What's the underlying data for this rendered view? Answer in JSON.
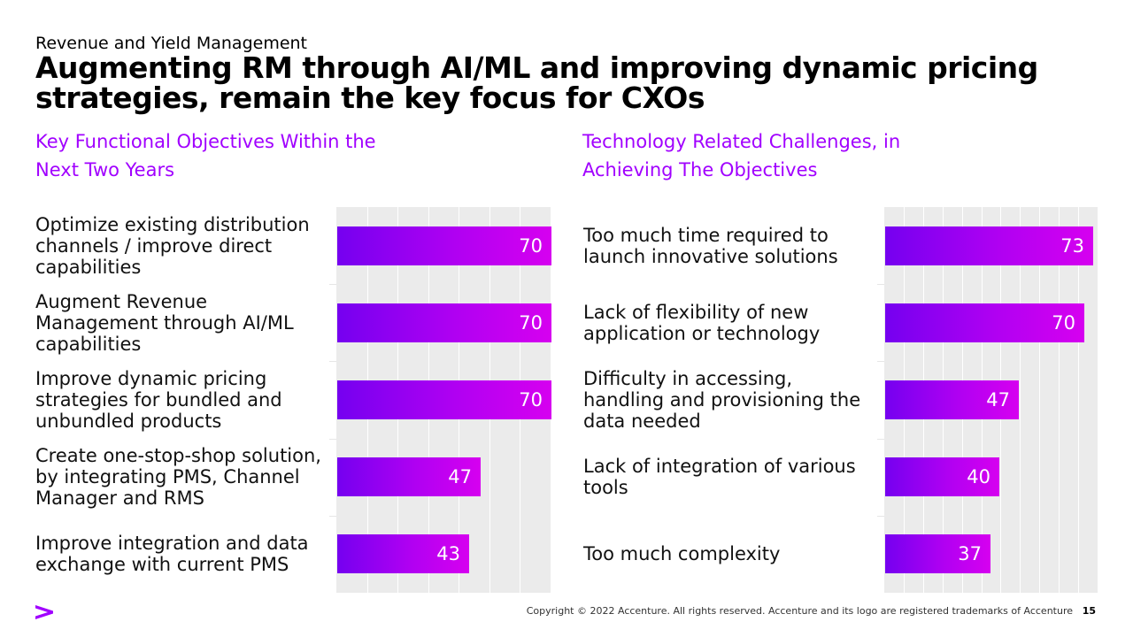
{
  "header": {
    "section": "Revenue and Yield Management",
    "title": "Augmenting RM through AI/ML and improving dynamic pricing strategies, remain the key focus for CXOs"
  },
  "footer": {
    "copyright": "Copyright © 2022 Accenture. All rights reserved. Accenture and its logo are registered trademarks of Accenture",
    "page": "15"
  },
  "colors": {
    "accent": "#a100ff",
    "bar_start": "#7500f0",
    "bar_end": "#d600f0",
    "plot_bg": "#ebebeb"
  },
  "logo_icon": "accenture-greater-than-icon",
  "chart_data": [
    {
      "type": "bar",
      "orientation": "horizontal",
      "title": "Key Functional Objectives Within the Next Two Years",
      "categories": [
        "Optimize existing distribution channels / improve direct capabilities",
        "Augment Revenue Management through AI/ML capabilities",
        "Improve dynamic pricing strategies for bundled and unbundled products",
        "Create one-stop-shop solution, by integrating PMS, Channel Manager and RMS",
        "Improve integration and data exchange with current PMS"
      ],
      "values": [
        70,
        70,
        70,
        47,
        43
      ],
      "xlim": [
        0,
        70
      ],
      "grid": true
    },
    {
      "type": "bar",
      "orientation": "horizontal",
      "title": "Technology Related Challenges, in Achieving The Objectives",
      "categories": [
        "Too much time required to launch innovative solutions",
        "Lack of flexibility of new application or technology",
        "Difficulty in accessing, handling and provisioning the data needed",
        "Lack of integration of various tools",
        "Too much complexity"
      ],
      "values": [
        73,
        70,
        47,
        40,
        37
      ],
      "xlim": [
        0,
        75
      ],
      "grid": true
    }
  ]
}
